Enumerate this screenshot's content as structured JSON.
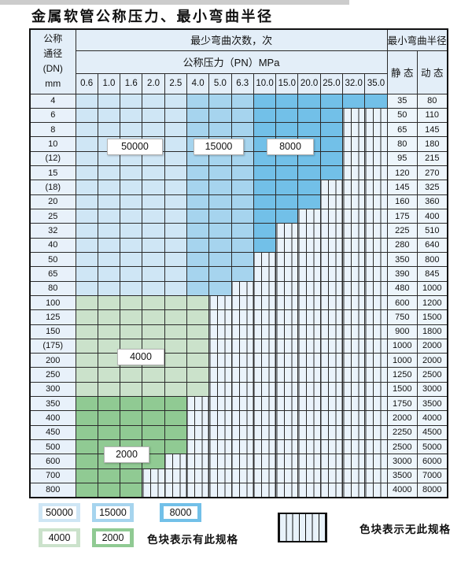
{
  "page": {
    "title": "金属软管公称压力、最小弯曲半径"
  },
  "colors": {
    "cycles_50000": "#cfe6f5",
    "cycles_15000": "#a6d4ee",
    "cycles_8000": "#72c0e8",
    "cycles_4000": "#cbe2cb",
    "cycles_2000": "#90ca93",
    "hatch_fill": "#eaf3fb",
    "header_bg": "#e3eef8",
    "dn_col_bg": "#e8f1fa",
    "radius_col_bg": "#edf5fb",
    "grid_line": "#2b2b2b"
  },
  "table": {
    "dn_header_lines": [
      "公称",
      "通径",
      "(DN)",
      "mm"
    ],
    "cycles_header": "最少弯曲次数，次",
    "pressure_header": "公称压力（PN）MPa",
    "pressure_values": [
      "0.6",
      "1.0",
      "1.6",
      "2.0",
      "2.5",
      "4.0",
      "5.0",
      "6.3",
      "10.0",
      "15.0",
      "20.0",
      "25.0",
      "32.0",
      "35.0"
    ],
    "radius_header": "最小弯曲半径",
    "static_header": "静 态",
    "dynamic_header": "动 态",
    "cycle_labels": [
      {
        "id": "label-50000",
        "text": "50000"
      },
      {
        "id": "label-15000",
        "text": "15000"
      },
      {
        "id": "label-8000",
        "text": "8000"
      },
      {
        "id": "label-4000",
        "text": "4000"
      },
      {
        "id": "label-2000",
        "text": "2000"
      }
    ],
    "rows": [
      {
        "dn": "4",
        "colored": 14,
        "palette": "blue",
        "static": "35",
        "dynamic": "80"
      },
      {
        "dn": "6",
        "colored": 12,
        "palette": "blue",
        "static": "50",
        "dynamic": "110"
      },
      {
        "dn": "8",
        "colored": 12,
        "palette": "blue",
        "static": "65",
        "dynamic": "145"
      },
      {
        "dn": "10",
        "colored": 12,
        "palette": "blue",
        "static": "80",
        "dynamic": "180"
      },
      {
        "dn": "(12)",
        "colored": 12,
        "palette": "blue",
        "static": "95",
        "dynamic": "215"
      },
      {
        "dn": "15",
        "colored": 12,
        "palette": "blue",
        "static": "120",
        "dynamic": "270"
      },
      {
        "dn": "(18)",
        "colored": 11,
        "palette": "blue",
        "static": "145",
        "dynamic": "325"
      },
      {
        "dn": "20",
        "colored": 11,
        "palette": "blue",
        "static": "160",
        "dynamic": "360"
      },
      {
        "dn": "25",
        "colored": 10,
        "palette": "blue",
        "static": "175",
        "dynamic": "400"
      },
      {
        "dn": "32",
        "colored": 9,
        "palette": "blue",
        "static": "225",
        "dynamic": "510"
      },
      {
        "dn": "40",
        "colored": 9,
        "palette": "blue",
        "static": "280",
        "dynamic": "640"
      },
      {
        "dn": "50",
        "colored": 8,
        "palette": "blue",
        "static": "350",
        "dynamic": "800"
      },
      {
        "dn": "65",
        "colored": 8,
        "palette": "blue",
        "static": "390",
        "dynamic": "845"
      },
      {
        "dn": "80",
        "colored": 7,
        "palette": "blue",
        "static": "480",
        "dynamic": "1000"
      },
      {
        "dn": "100",
        "colored": 6,
        "palette": "g4000",
        "static": "600",
        "dynamic": "1200"
      },
      {
        "dn": "125",
        "colored": 6,
        "palette": "g4000",
        "static": "750",
        "dynamic": "1500"
      },
      {
        "dn": "150",
        "colored": 6,
        "palette": "g4000",
        "static": "900",
        "dynamic": "1800"
      },
      {
        "dn": "(175)",
        "colored": 6,
        "palette": "g4000",
        "static": "1000",
        "dynamic": "2000"
      },
      {
        "dn": "200",
        "colored": 6,
        "palette": "g4000",
        "static": "1000",
        "dynamic": "2000"
      },
      {
        "dn": "250",
        "colored": 6,
        "palette": "g4000",
        "static": "1250",
        "dynamic": "2500"
      },
      {
        "dn": "300",
        "colored": 6,
        "palette": "g4000",
        "static": "1500",
        "dynamic": "3000"
      },
      {
        "dn": "350",
        "colored": 5,
        "palette": "g2000",
        "static": "1750",
        "dynamic": "3500"
      },
      {
        "dn": "400",
        "colored": 5,
        "palette": "g2000",
        "static": "2000",
        "dynamic": "4000"
      },
      {
        "dn": "450",
        "colored": 5,
        "palette": "g2000",
        "static": "2250",
        "dynamic": "4500"
      },
      {
        "dn": "500",
        "colored": 5,
        "palette": "g2000",
        "static": "2500",
        "dynamic": "5000"
      },
      {
        "dn": "600",
        "colored": 4,
        "palette": "g2000",
        "static": "3000",
        "dynamic": "6000"
      },
      {
        "dn": "700",
        "colored": 3,
        "palette": "g2000",
        "static": "3500",
        "dynamic": "7000"
      },
      {
        "dn": "800",
        "colored": 3,
        "palette": "g2000",
        "static": "4000",
        "dynamic": "8000"
      }
    ]
  },
  "legend": {
    "items": [
      {
        "value": "50000",
        "color_key": "cycles_50000"
      },
      {
        "value": "15000",
        "color_key": "cycles_15000"
      },
      {
        "value": "8000",
        "color_key": "cycles_8000"
      },
      {
        "value": "4000",
        "color_key": "cycles_4000"
      },
      {
        "value": "2000",
        "color_key": "cycles_2000"
      }
    ],
    "has_spec_note": "色块表示有此规格",
    "no_spec_note": "色块表示无此规格"
  }
}
